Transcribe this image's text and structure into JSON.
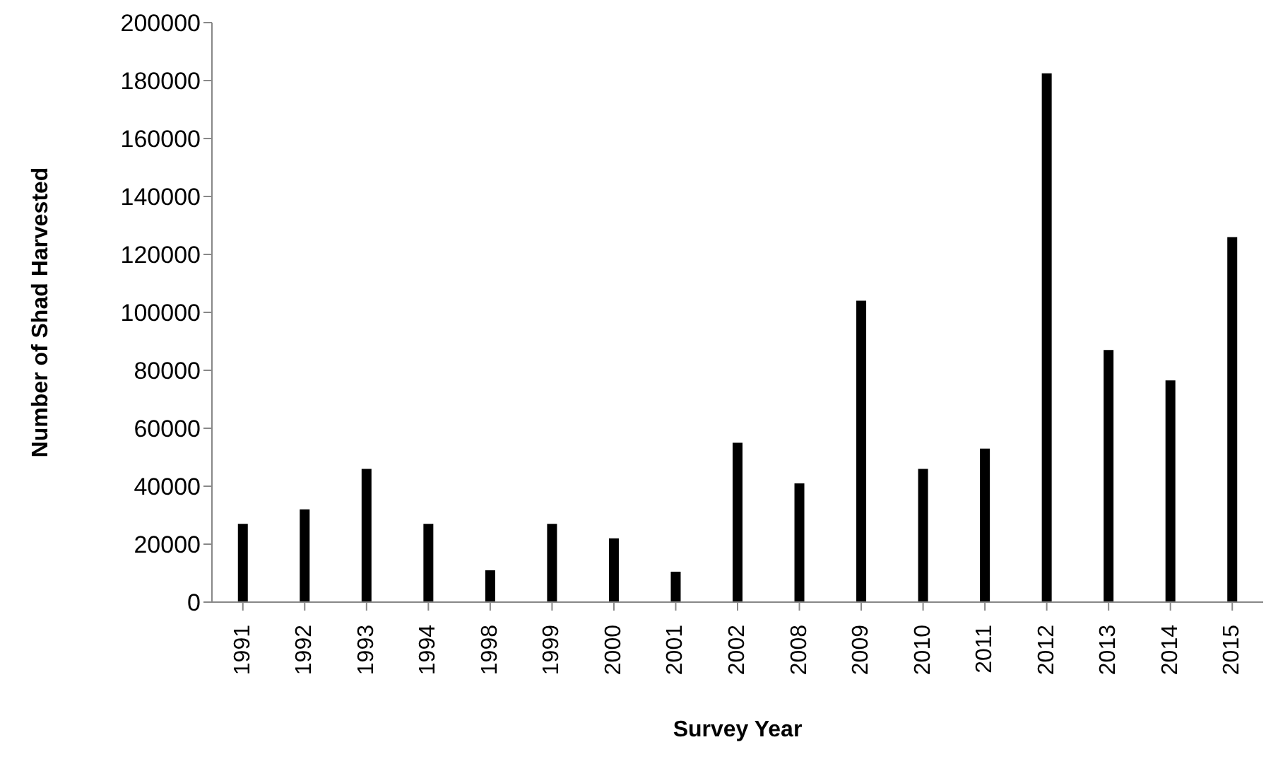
{
  "chart_data": {
    "type": "bar",
    "xlabel": "Survey Year",
    "ylabel": "Number of Shad Harvested",
    "categories": [
      "1991",
      "1992",
      "1993",
      "1994",
      "1998",
      "1999",
      "2000",
      "2001",
      "2002",
      "2008",
      "2009",
      "2010",
      "2011",
      "2012",
      "2013",
      "2014",
      "2015"
    ],
    "values": [
      27000,
      32000,
      46000,
      27000,
      11000,
      27000,
      22000,
      10500,
      55000,
      41000,
      104000,
      46000,
      53000,
      182500,
      87000,
      76500,
      126000
    ],
    "color": "#000000",
    "ylim": [
      0,
      200000
    ],
    "yticks": [
      0,
      20000,
      40000,
      60000,
      80000,
      100000,
      120000,
      140000,
      160000,
      180000,
      200000
    ],
    "grid": false,
    "legend": false
  }
}
